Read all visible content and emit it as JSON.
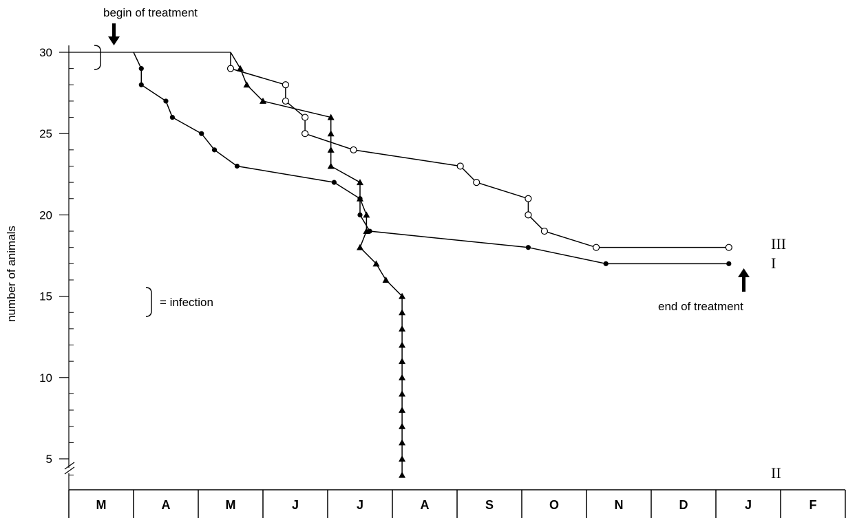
{
  "chart_data": {
    "type": "line",
    "ylabel": "number of animals",
    "y_ticks": [
      5,
      10,
      15,
      20,
      25,
      30
    ],
    "ylim": [
      3,
      31
    ],
    "y_axis_broken": true,
    "x_axis": {
      "unit": "month",
      "months": [
        "M",
        "A",
        "M",
        "J",
        "J",
        "A",
        "S",
        "O",
        "N",
        "D",
        "J",
        "F"
      ],
      "xlim": [
        0,
        12
      ]
    },
    "annotations": {
      "begin": "begin of treatment",
      "end": "end of treatment",
      "legend_infection": "= infection"
    },
    "infection_brace_y": 30,
    "begin_treatment_x": 0.7,
    "end_treatment_x": 10.3,
    "baseline": {
      "x": [
        0,
        2.5
      ],
      "y": [
        30,
        30
      ]
    },
    "series": [
      {
        "name": "I",
        "marker": "filled-circle",
        "x": [
          1.0,
          1.12,
          1.12,
          1.5,
          1.6,
          2.05,
          2.25,
          2.6,
          4.1,
          4.5,
          4.5,
          4.65,
          7.1,
          8.3,
          10.2
        ],
        "y": [
          30,
          29,
          28,
          27,
          26,
          25,
          24,
          23,
          22,
          21,
          20,
          19,
          18,
          17,
          17
        ]
      },
      {
        "name": "II",
        "marker": "filled-triangle",
        "x": [
          2.5,
          2.65,
          2.75,
          3.0,
          4.05,
          4.05,
          4.05,
          4.05,
          4.5,
          4.5,
          4.6,
          4.6,
          4.5,
          4.75,
          4.9,
          5.15,
          5.15,
          5.15,
          5.15,
          5.15,
          5.15,
          5.15,
          5.15,
          5.15,
          5.15,
          5.15,
          5.15,
          5.15,
          5.15,
          5.15,
          5.15,
          5.15,
          5.15,
          5.15,
          5.15,
          5.15,
          5.15,
          5.15,
          5.15,
          5.15,
          5.15,
          5.15,
          5.15,
          5.15,
          5.15,
          5.15,
          5.15,
          5.15,
          5.15
        ],
        "y": [
          30,
          29,
          28,
          27,
          26,
          25,
          24,
          23,
          22,
          21,
          20,
          19,
          18,
          17,
          16,
          15,
          14,
          13,
          12,
          11,
          10,
          9,
          8,
          7,
          6,
          5,
          4,
          4,
          4,
          4,
          4,
          4,
          4,
          4,
          4,
          4,
          4,
          4,
          4,
          4,
          4,
          4,
          4,
          4,
          4,
          4,
          4,
          4,
          4
        ]
      },
      {
        "name": "III",
        "marker": "open-circle",
        "x": [
          2.5,
          2.5,
          3.35,
          3.35,
          3.65,
          3.65,
          4.4,
          6.05,
          6.3,
          7.1,
          7.1,
          7.35,
          8.15,
          10.2
        ],
        "y": [
          30,
          29,
          28,
          27,
          26,
          25,
          24,
          23,
          22,
          21,
          20,
          19,
          18,
          18
        ]
      }
    ]
  }
}
